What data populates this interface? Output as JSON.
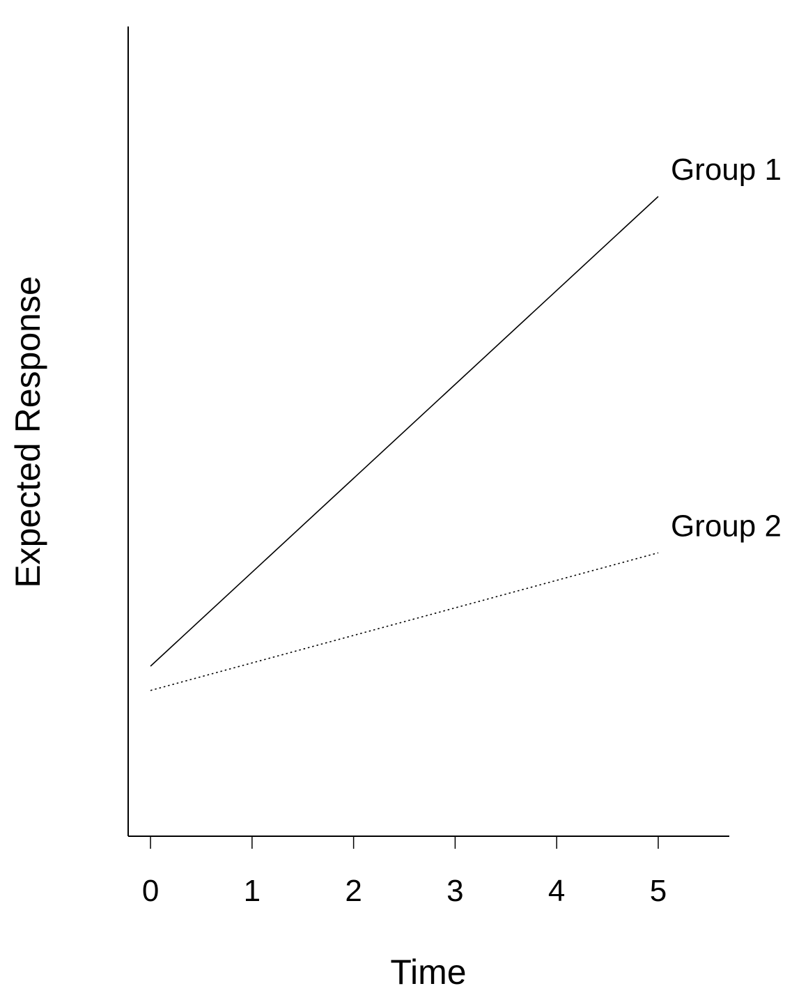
{
  "chart_data": {
    "type": "line",
    "title": "",
    "xlabel": "Time",
    "ylabel": "Expected Response",
    "xlim": [
      -0.22,
      5.7
    ],
    "ylim": [
      0,
      10
    ],
    "xticks": [
      0,
      1,
      2,
      3,
      4,
      5
    ],
    "yticks": [],
    "grid": false,
    "legend": "inline labels at line ends",
    "series": [
      {
        "name": "Group 1",
        "style": "solid",
        "x": [
          0,
          5
        ],
        "y": [
          2.1,
          7.9
        ]
      },
      {
        "name": "Group 2",
        "style": "dotted",
        "x": [
          0,
          5
        ],
        "y": [
          1.8,
          3.5
        ]
      }
    ]
  }
}
